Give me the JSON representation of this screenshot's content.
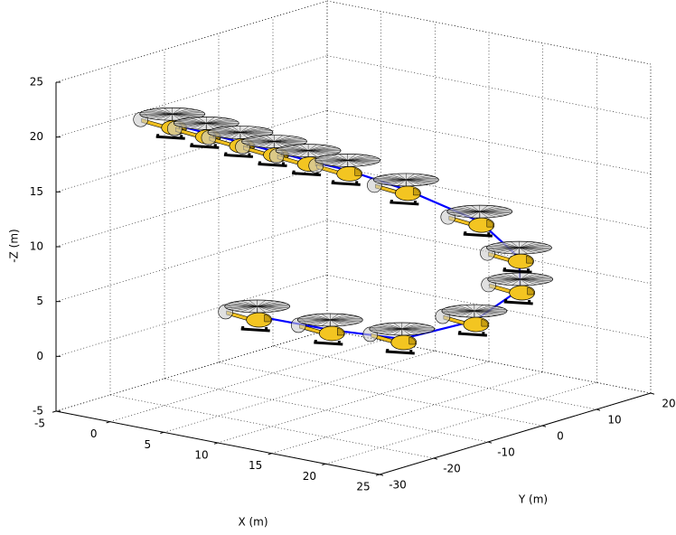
{
  "chart_data": {
    "type": "line3d",
    "xlabel": "X (m)",
    "ylabel": "Y (m)",
    "zlabel": "-Z (m)",
    "x": [
      -0.5,
      2.5,
      5.5,
      8.5,
      11.5,
      14.5,
      16.3,
      19.2,
      21,
      20.8,
      18,
      13.2,
      8.5,
      2.9
    ],
    "y": [
      -17.5,
      -17.2,
      -16.9,
      -16.6,
      -16.3,
      -15,
      -7.8,
      0,
      3.7,
      4.3,
      1.4,
      -2.4,
      -6.3,
      -8.6
    ],
    "z": [
      20.2,
      19.9,
      19.6,
      19.3,
      19,
      18.5,
      16,
      12.5,
      9,
      6,
      3,
      1,
      1.5,
      2
    ],
    "color": "#0000ff",
    "xlim": [
      -5,
      25
    ],
    "xticks": [
      -5,
      0,
      5,
      10,
      15,
      20,
      25
    ],
    "ylim": [
      -30,
      20
    ],
    "yticks": [
      -30,
      -20,
      -10,
      0,
      10,
      20
    ],
    "zlim": [
      -5,
      25
    ],
    "zticks": [
      -5,
      0,
      5,
      10,
      15,
      20,
      25
    ],
    "grid": true
  }
}
